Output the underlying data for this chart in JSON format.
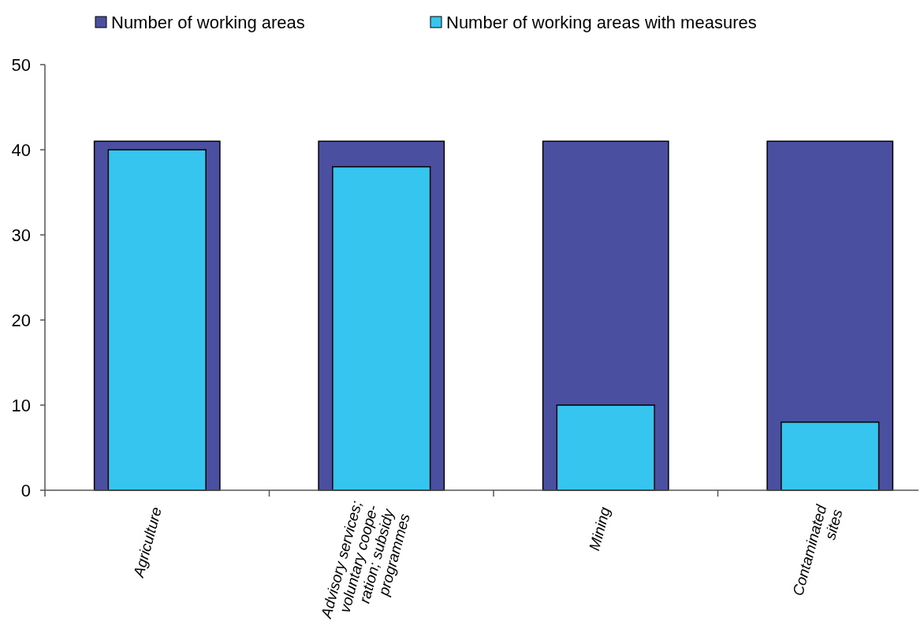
{
  "chart_data": {
    "type": "bar",
    "categories": [
      "Agriculture",
      "Advisory services;\nvoluntary coope-\nration; subsidy\nprogrammes",
      "Mining",
      "Contaminated\nsites"
    ],
    "series": [
      {
        "name": "Number of working areas",
        "color": "#4b4f9f",
        "values": [
          41,
          41,
          41,
          41
        ]
      },
      {
        "name": "Number of working areas with measures",
        "color": "#36c5ee",
        "values": [
          40,
          38,
          10,
          8
        ]
      }
    ],
    "ylim": [
      0,
      50
    ],
    "yticks": [
      0,
      10,
      20,
      30,
      40,
      50
    ],
    "grid": false,
    "legend": "top"
  }
}
